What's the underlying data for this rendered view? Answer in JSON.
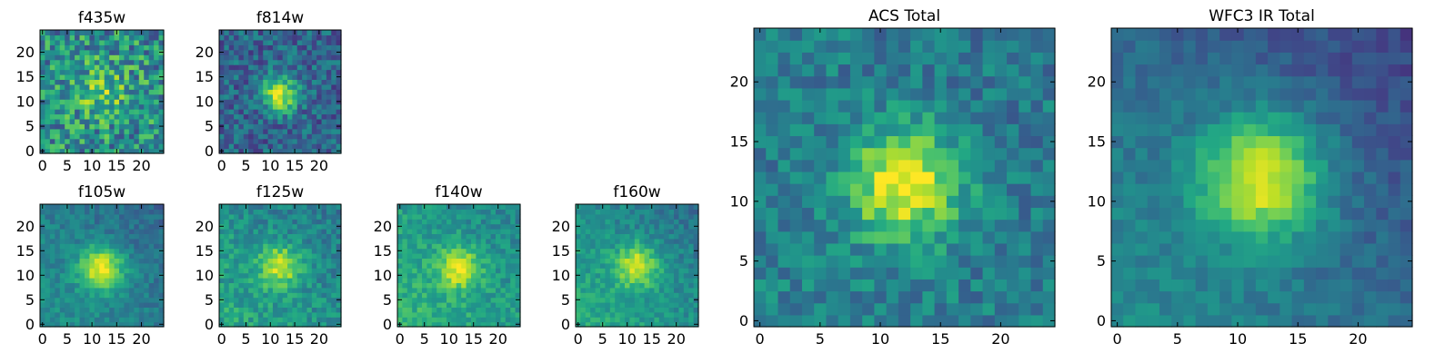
{
  "chart_data": [
    {
      "type": "heatmap",
      "title": "f435w",
      "xlim": [
        0,
        24
      ],
      "ylim": [
        0,
        24
      ],
      "xticks": [
        0,
        5,
        10,
        15,
        20
      ],
      "yticks": [
        0,
        5,
        10,
        15,
        20
      ],
      "grid_size": 25,
      "center": [
        12.5,
        12.5
      ],
      "sigma": 4.0,
      "peak": 0.22,
      "noise": 0.55,
      "background": 0.5,
      "gradient": 0.0,
      "seed": 3
    },
    {
      "type": "heatmap",
      "title": "f814w",
      "xlim": [
        0,
        24
      ],
      "ylim": [
        0,
        24
      ],
      "xticks": [
        0,
        5,
        10,
        15,
        20
      ],
      "yticks": [
        0,
        5,
        10,
        15,
        20
      ],
      "grid_size": 25,
      "center": [
        12.5,
        12
      ],
      "sigma": 2.6,
      "peak": 0.62,
      "noise": 0.35,
      "background": 0.32,
      "gradient": 0.0,
      "seed": 7
    },
    {
      "type": "heatmap",
      "title": "f105w",
      "xlim": [
        0,
        24
      ],
      "ylim": [
        0,
        24
      ],
      "xticks": [
        0,
        5,
        10,
        15,
        20
      ],
      "yticks": [
        0,
        5,
        10,
        15,
        20
      ],
      "grid_size": 25,
      "center": [
        12.5,
        12
      ],
      "sigma": 3.2,
      "peak": 0.55,
      "noise": 0.18,
      "background": 0.42,
      "gradient": 0.18,
      "seed": 11
    },
    {
      "type": "heatmap",
      "title": "f125w",
      "xlim": [
        0,
        24
      ],
      "ylim": [
        0,
        24
      ],
      "xticks": [
        0,
        5,
        10,
        15,
        20
      ],
      "yticks": [
        0,
        5,
        10,
        15,
        20
      ],
      "grid_size": 25,
      "center": [
        12.5,
        12.5
      ],
      "sigma": 2.9,
      "peak": 0.45,
      "noise": 0.25,
      "background": 0.5,
      "gradient": 0.2,
      "seed": 13
    },
    {
      "type": "heatmap",
      "title": "f140w",
      "xlim": [
        0,
        24
      ],
      "ylim": [
        0,
        24
      ],
      "xticks": [
        0,
        5,
        10,
        15,
        20
      ],
      "yticks": [
        0,
        5,
        10,
        15,
        20
      ],
      "grid_size": 25,
      "center": [
        12.5,
        12
      ],
      "sigma": 3.0,
      "peak": 0.42,
      "noise": 0.22,
      "background": 0.55,
      "gradient": 0.22,
      "seed": 17
    },
    {
      "type": "heatmap",
      "title": "f160w",
      "xlim": [
        0,
        24
      ],
      "ylim": [
        0,
        24
      ],
      "xticks": [
        0,
        5,
        10,
        15,
        20
      ],
      "yticks": [
        0,
        5,
        10,
        15,
        20
      ],
      "grid_size": 25,
      "center": [
        12.5,
        12.5
      ],
      "sigma": 3.0,
      "peak": 0.45,
      "noise": 0.2,
      "background": 0.5,
      "gradient": 0.25,
      "seed": 19
    },
    {
      "type": "heatmap",
      "title": "ACS Total",
      "xlim": [
        0,
        24
      ],
      "ylim": [
        0,
        24
      ],
      "xticks": [
        0,
        5,
        10,
        15,
        20
      ],
      "yticks": [
        0,
        5,
        10,
        15,
        20
      ],
      "grid_size": 25,
      "center": [
        12.5,
        12
      ],
      "sigma": 3.2,
      "peak": 0.6,
      "noise": 0.28,
      "background": 0.42,
      "gradient": 0.05,
      "seed": 23
    },
    {
      "type": "heatmap",
      "title": "WFC3 IR Total",
      "xlim": [
        0,
        24
      ],
      "ylim": [
        0,
        24
      ],
      "xticks": [
        0,
        5,
        10,
        15,
        20
      ],
      "yticks": [
        0,
        5,
        10,
        15,
        20
      ],
      "grid_size": 25,
      "center": [
        12.5,
        12.5
      ],
      "sigma": 3.6,
      "peak": 0.62,
      "noise": 0.15,
      "background": 0.35,
      "gradient": 0.28,
      "seed": 29
    }
  ],
  "colormap": "viridis"
}
